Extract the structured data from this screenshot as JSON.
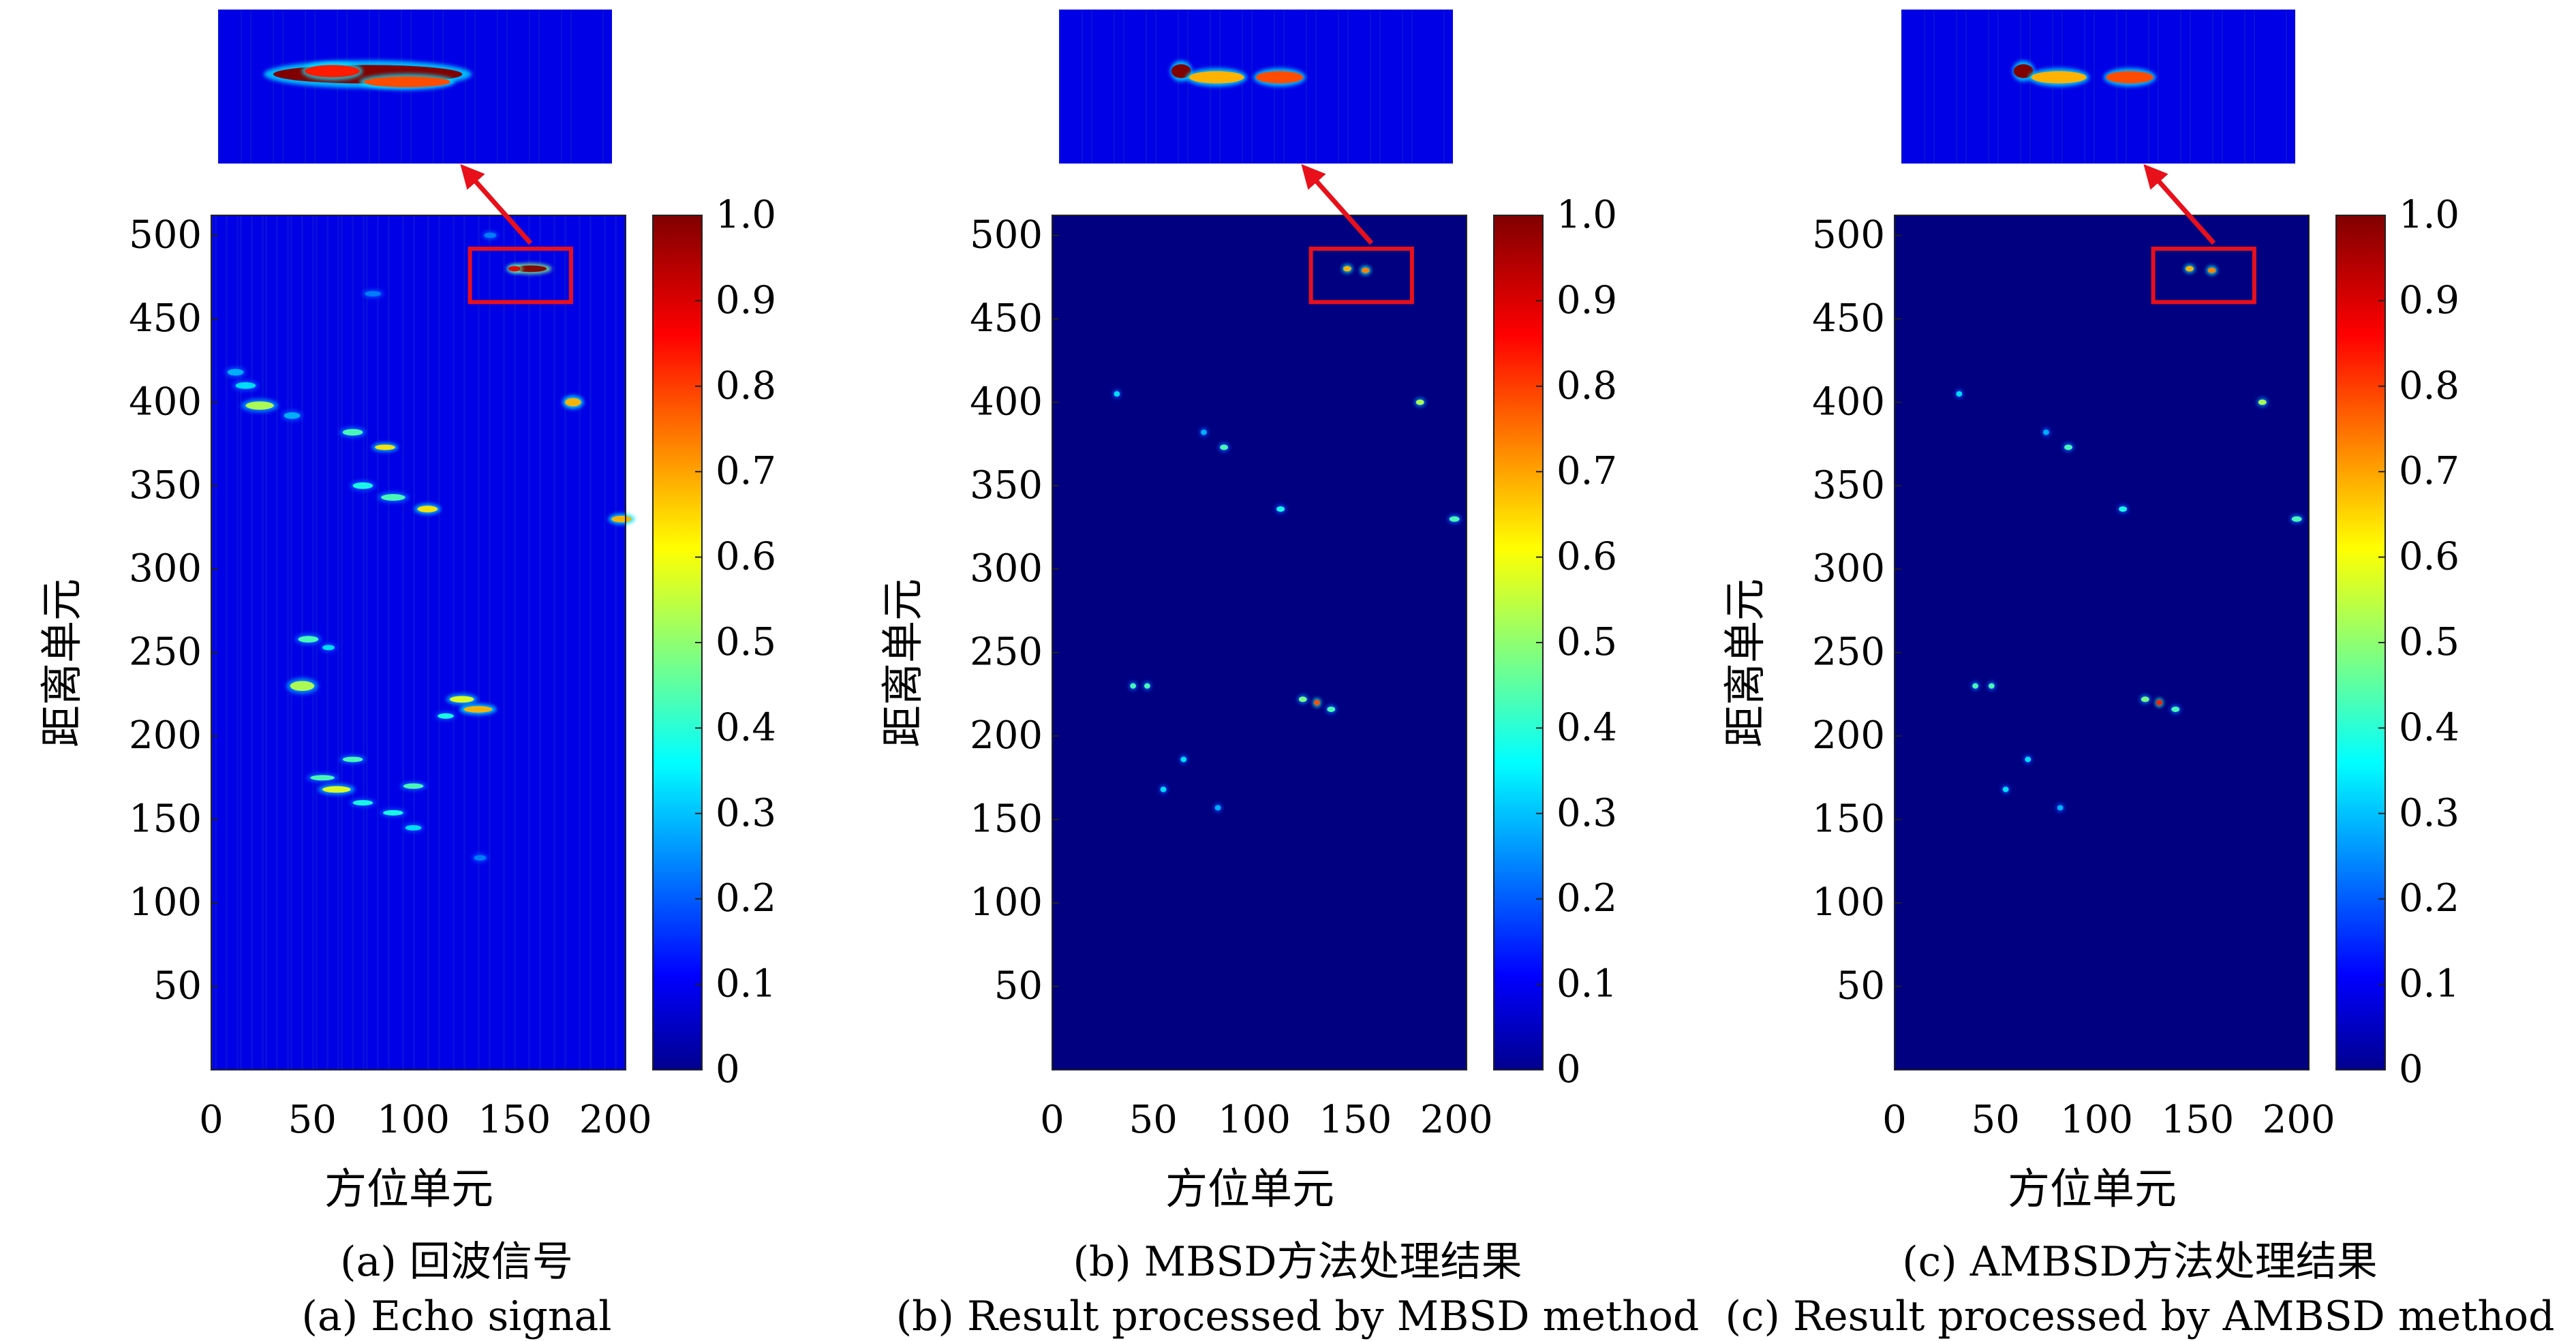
{
  "colors": {
    "background": "#00008f",
    "highlight_box": "#e8101a",
    "arrow": "#e8101a"
  },
  "colormap": "jet",
  "chart_data": [
    {
      "type": "heatmap",
      "panel": "a",
      "xlabel": "方位单元",
      "ylabel": "距离单元",
      "xticks": [
        "0",
        "50",
        "100",
        "150",
        "200"
      ],
      "yticks": [
        "50",
        "100",
        "150",
        "200",
        "250",
        "300",
        "350",
        "400",
        "450",
        "500"
      ],
      "xlim": [
        0,
        205
      ],
      "ylim": [
        0,
        512
      ],
      "colorbar": {
        "ticks": [
          "0",
          "0.1",
          "0.2",
          "0.3",
          "0.4",
          "0.5",
          "0.6",
          "0.7",
          "0.8",
          "0.9",
          "1.0"
        ],
        "range": [
          0,
          1
        ]
      },
      "background_level": 0.1,
      "caption_cn": "(a) 回波信号",
      "caption_en": "(a) Echo signal",
      "highlight_box": {
        "x": [
          128,
          178
        ],
        "y": [
          460,
          492
        ]
      },
      "streaks": [
        {
          "x": 158,
          "y": 480,
          "len": 16,
          "w": 4,
          "v": 1.0
        },
        {
          "x": 150,
          "y": 480,
          "len": 6,
          "w": 3,
          "v": 0.9
        },
        {
          "x": 179,
          "y": 400,
          "len": 8,
          "w": 5,
          "v": 0.7
        },
        {
          "x": 203,
          "y": 330,
          "len": 10,
          "w": 4,
          "v": 0.7
        },
        {
          "x": 107,
          "y": 336,
          "len": 10,
          "w": 4,
          "v": 0.65
        },
        {
          "x": 90,
          "y": 343,
          "len": 12,
          "w": 4,
          "v": 0.45
        },
        {
          "x": 75,
          "y": 350,
          "len": 10,
          "w": 4,
          "v": 0.4
        },
        {
          "x": 86,
          "y": 373,
          "len": 10,
          "w": 3,
          "v": 0.65
        },
        {
          "x": 70,
          "y": 382,
          "len": 10,
          "w": 4,
          "v": 0.45
        },
        {
          "x": 24,
          "y": 398,
          "len": 14,
          "w": 5,
          "v": 0.55
        },
        {
          "x": 17,
          "y": 410,
          "len": 10,
          "w": 4,
          "v": 0.35
        },
        {
          "x": 12,
          "y": 418,
          "len": 8,
          "w": 4,
          "v": 0.3
        },
        {
          "x": 40,
          "y": 392,
          "len": 8,
          "w": 4,
          "v": 0.3
        },
        {
          "x": 45,
          "y": 230,
          "len": 12,
          "w": 6,
          "v": 0.55
        },
        {
          "x": 48,
          "y": 258,
          "len": 10,
          "w": 4,
          "v": 0.45
        },
        {
          "x": 58,
          "y": 253,
          "len": 6,
          "w": 3,
          "v": 0.35
        },
        {
          "x": 124,
          "y": 222,
          "len": 12,
          "w": 4,
          "v": 0.6
        },
        {
          "x": 132,
          "y": 216,
          "len": 14,
          "w": 4,
          "v": 0.7
        },
        {
          "x": 116,
          "y": 212,
          "len": 8,
          "w": 3,
          "v": 0.4
        },
        {
          "x": 70,
          "y": 186,
          "len": 10,
          "w": 3,
          "v": 0.45
        },
        {
          "x": 55,
          "y": 175,
          "len": 12,
          "w": 3,
          "v": 0.45
        },
        {
          "x": 62,
          "y": 168,
          "len": 14,
          "w": 4,
          "v": 0.6
        },
        {
          "x": 75,
          "y": 160,
          "len": 10,
          "w": 3,
          "v": 0.4
        },
        {
          "x": 90,
          "y": 154,
          "len": 10,
          "w": 3,
          "v": 0.4
        },
        {
          "x": 100,
          "y": 145,
          "len": 8,
          "w": 3,
          "v": 0.35
        },
        {
          "x": 100,
          "y": 170,
          "len": 10,
          "w": 3,
          "v": 0.45
        },
        {
          "x": 80,
          "y": 465,
          "len": 8,
          "w": 3,
          "v": 0.25
        },
        {
          "x": 138,
          "y": 500,
          "len": 6,
          "w": 3,
          "v": 0.25
        },
        {
          "x": 133,
          "y": 127,
          "len": 6,
          "w": 3,
          "v": 0.25
        }
      ],
      "zoom_streaks": [
        {
          "x": 0.38,
          "y": 0.42,
          "len": 0.48,
          "w": 0.12,
          "v": 1.0
        },
        {
          "x": 0.29,
          "y": 0.4,
          "len": 0.14,
          "w": 0.08,
          "v": 0.85
        },
        {
          "x": 0.48,
          "y": 0.47,
          "len": 0.22,
          "w": 0.07,
          "v": 0.8
        }
      ]
    },
    {
      "type": "heatmap",
      "panel": "b",
      "xlabel": "方位单元",
      "ylabel": "距离单元",
      "xticks": [
        "0",
        "50",
        "100",
        "150",
        "200"
      ],
      "yticks": [
        "50",
        "100",
        "150",
        "200",
        "250",
        "300",
        "350",
        "400",
        "450",
        "500"
      ],
      "xlim": [
        0,
        205
      ],
      "ylim": [
        0,
        512
      ],
      "colorbar": {
        "ticks": [
          "0",
          "0.1",
          "0.2",
          "0.3",
          "0.4",
          "0.5",
          "0.6",
          "0.7",
          "0.8",
          "0.9",
          "1.0"
        ],
        "range": [
          0,
          1
        ]
      },
      "background_level": 0.0,
      "caption_cn": "(b) MBSD方法处理结果",
      "caption_en": "(b) Result processed by MBSD method",
      "highlight_box": {
        "x": [
          128,
          178
        ],
        "y": [
          460,
          492
        ]
      },
      "streaks": [
        {
          "x": 146,
          "y": 480,
          "len": 4,
          "w": 3,
          "v": 0.7
        },
        {
          "x": 155,
          "y": 479,
          "len": 4,
          "w": 3,
          "v": 0.75
        },
        {
          "x": 182,
          "y": 400,
          "len": 4,
          "w": 3,
          "v": 0.55
        },
        {
          "x": 199,
          "y": 330,
          "len": 5,
          "w": 3,
          "v": 0.45
        },
        {
          "x": 113,
          "y": 336,
          "len": 4,
          "w": 3,
          "v": 0.4
        },
        {
          "x": 85,
          "y": 373,
          "len": 4,
          "w": 3,
          "v": 0.45
        },
        {
          "x": 75,
          "y": 382,
          "len": 3,
          "w": 3,
          "v": 0.3
        },
        {
          "x": 32,
          "y": 405,
          "len": 3,
          "w": 3,
          "v": 0.35
        },
        {
          "x": 40,
          "y": 230,
          "len": 3,
          "w": 3,
          "v": 0.45
        },
        {
          "x": 47,
          "y": 230,
          "len": 3,
          "w": 3,
          "v": 0.45
        },
        {
          "x": 124,
          "y": 222,
          "len": 4,
          "w": 3,
          "v": 0.5
        },
        {
          "x": 131,
          "y": 220,
          "len": 3,
          "w": 3,
          "v": 0.8
        },
        {
          "x": 138,
          "y": 216,
          "len": 4,
          "w": 3,
          "v": 0.45
        },
        {
          "x": 65,
          "y": 186,
          "len": 3,
          "w": 3,
          "v": 0.35
        },
        {
          "x": 55,
          "y": 168,
          "len": 3,
          "w": 3,
          "v": 0.35
        },
        {
          "x": 82,
          "y": 157,
          "len": 3,
          "w": 3,
          "v": 0.3
        }
      ],
      "zoom_streaks": [
        {
          "x": 0.31,
          "y": 0.4,
          "len": 0.05,
          "w": 0.09,
          "v": 1.0
        },
        {
          "x": 0.4,
          "y": 0.44,
          "len": 0.14,
          "w": 0.08,
          "v": 0.7
        },
        {
          "x": 0.56,
          "y": 0.44,
          "len": 0.12,
          "w": 0.08,
          "v": 0.8
        }
      ]
    },
    {
      "type": "heatmap",
      "panel": "c",
      "xlabel": "方位单元",
      "ylabel": "距离单元",
      "xticks": [
        "0",
        "50",
        "100",
        "150",
        "200"
      ],
      "yticks": [
        "50",
        "100",
        "150",
        "200",
        "250",
        "300",
        "350",
        "400",
        "450",
        "500"
      ],
      "xlim": [
        0,
        205
      ],
      "ylim": [
        0,
        512
      ],
      "colorbar": {
        "ticks": [
          "0",
          "0.1",
          "0.2",
          "0.3",
          "0.4",
          "0.5",
          "0.6",
          "0.7",
          "0.8",
          "0.9",
          "1.0"
        ],
        "range": [
          0,
          1
        ]
      },
      "background_level": 0.0,
      "caption_cn": "(c) AMBSD方法处理结果",
      "caption_en": "(c) Result processed by AMBSD method",
      "highlight_box": {
        "x": [
          128,
          178
        ],
        "y": [
          460,
          492
        ]
      },
      "streaks": [
        {
          "x": 146,
          "y": 480,
          "len": 4,
          "w": 3,
          "v": 0.7
        },
        {
          "x": 157,
          "y": 479,
          "len": 4,
          "w": 3,
          "v": 0.75
        },
        {
          "x": 182,
          "y": 400,
          "len": 4,
          "w": 3,
          "v": 0.55
        },
        {
          "x": 199,
          "y": 330,
          "len": 5,
          "w": 3,
          "v": 0.45
        },
        {
          "x": 113,
          "y": 336,
          "len": 4,
          "w": 3,
          "v": 0.4
        },
        {
          "x": 86,
          "y": 373,
          "len": 4,
          "w": 3,
          "v": 0.45
        },
        {
          "x": 75,
          "y": 382,
          "len": 3,
          "w": 3,
          "v": 0.3
        },
        {
          "x": 32,
          "y": 405,
          "len": 3,
          "w": 3,
          "v": 0.35
        },
        {
          "x": 40,
          "y": 230,
          "len": 3,
          "w": 3,
          "v": 0.45
        },
        {
          "x": 48,
          "y": 230,
          "len": 3,
          "w": 3,
          "v": 0.45
        },
        {
          "x": 124,
          "y": 222,
          "len": 4,
          "w": 3,
          "v": 0.5
        },
        {
          "x": 131,
          "y": 220,
          "len": 3,
          "w": 3,
          "v": 0.85
        },
        {
          "x": 139,
          "y": 216,
          "len": 4,
          "w": 3,
          "v": 0.45
        },
        {
          "x": 66,
          "y": 186,
          "len": 3,
          "w": 3,
          "v": 0.35
        },
        {
          "x": 55,
          "y": 168,
          "len": 3,
          "w": 3,
          "v": 0.35
        },
        {
          "x": 82,
          "y": 157,
          "len": 3,
          "w": 3,
          "v": 0.3
        }
      ],
      "zoom_streaks": [
        {
          "x": 0.31,
          "y": 0.4,
          "len": 0.05,
          "w": 0.09,
          "v": 1.0
        },
        {
          "x": 0.4,
          "y": 0.44,
          "len": 0.14,
          "w": 0.08,
          "v": 0.7
        },
        {
          "x": 0.58,
          "y": 0.44,
          "len": 0.12,
          "w": 0.08,
          "v": 0.8
        }
      ]
    }
  ]
}
